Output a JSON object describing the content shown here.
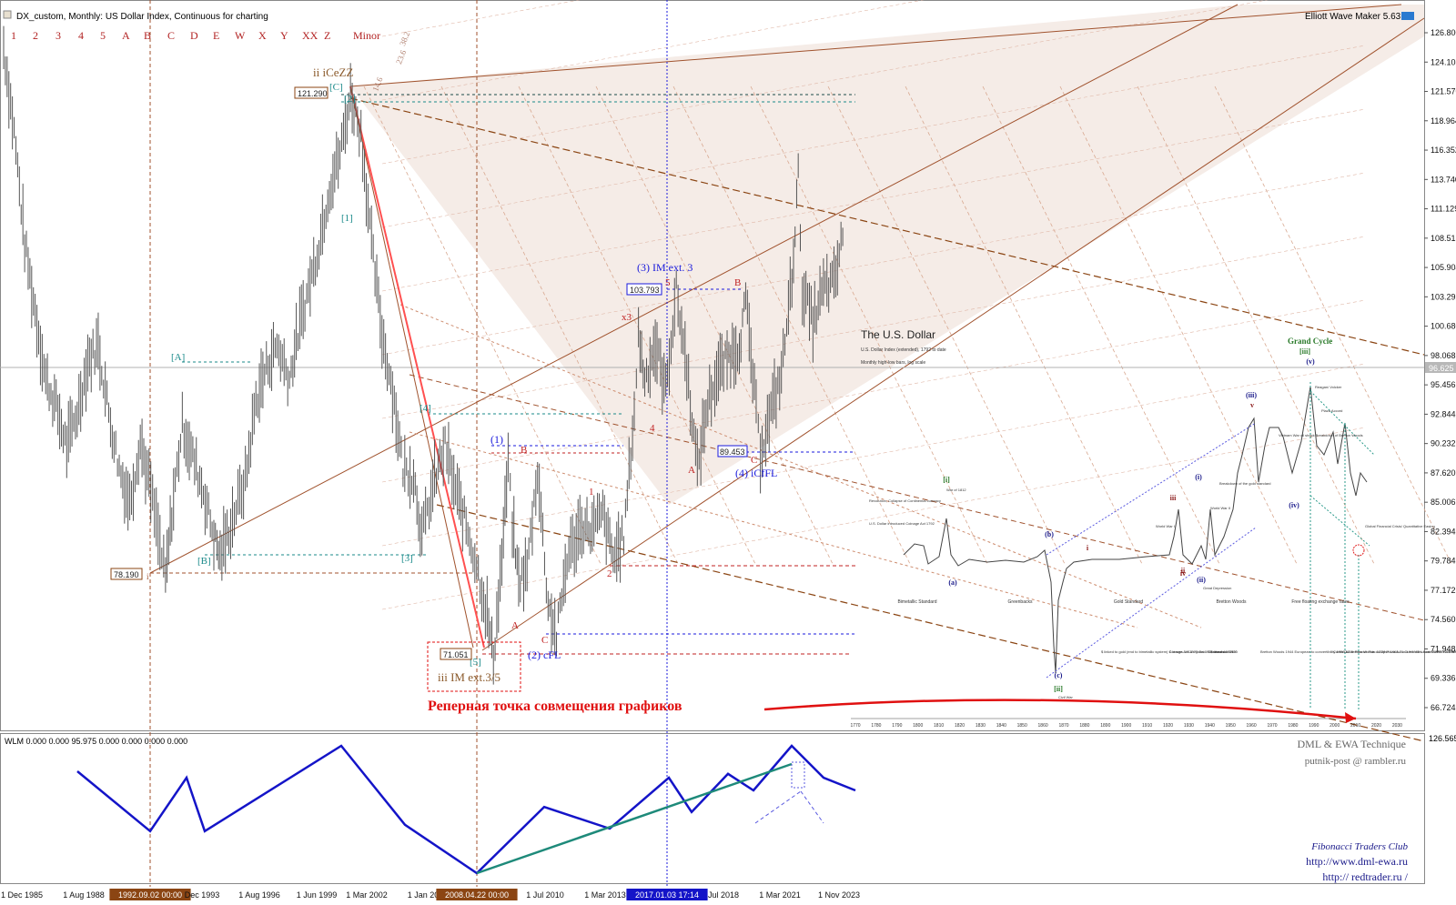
{
  "window": {
    "title": "DX_custom, Monthly:  US Dollar Index, Continuous for charting",
    "indicator_name": "Elliott Wave Maker 5.63",
    "lower_panel_title": "WLM 0.000 0.000 95.975 0.000 0.000 0.000 0.000"
  },
  "toolbar": {
    "wave_degrees": [
      "1",
      "2",
      "3",
      "4",
      "5",
      "A",
      "B",
      "C",
      "D",
      "E",
      "W",
      "X",
      "Y",
      "XX",
      "Z",
      "Minor"
    ]
  },
  "colors": {
    "price_bars": "#555555",
    "pitchfork_line": "#a0522d",
    "fib_line": "#cd8c6e",
    "blue_label": "#1a1adc",
    "red_label": "#c02020",
    "teal_label": "#1a8a8a",
    "wlm_line": "#1414c8",
    "wlm_teal": "#1e8a7a"
  },
  "chart_data": {
    "type": "line",
    "title": "DX_custom, Monthly:  US Dollar Index, Continuous for charting",
    "xlabel": "",
    "ylabel": "",
    "ylim": [
      66.724,
      126.8
    ],
    "y_ticks": [
      "126.800",
      "124.108",
      "121.570",
      "118.964",
      "116.352",
      "113.740",
      "111.129",
      "108.515",
      "105.904",
      "103.292",
      "100.680",
      "98.068",
      "95.456",
      "92.844",
      "90.232",
      "87.620",
      "85.006",
      "82.394",
      "79.784",
      "77.172",
      "74.560",
      "71.948",
      "69.336",
      "66.724"
    ],
    "current_price": "96.625",
    "x_ticks": [
      "1 Dec 1985",
      "1 Aug 1988",
      "1992.09.02 00:00",
      "Dec 1993",
      "1 Aug 1996",
      "1 Jun 1999",
      "1 Mar 2002",
      "1 Jan 20",
      "2008.04.22 00:00",
      "1 Jul 2010",
      "1 Mar 2013",
      "2017.01.03 17:14",
      "Jul 2018",
      "1 Mar 2021",
      "1 Nov 2023"
    ],
    "series": [
      {
        "x": [
          1985.0,
          1985.5,
          1986.0,
          1986.5,
          1987.0,
          1987.5,
          1988.0,
          1988.5,
          1989.0,
          1989.5,
          1990.0,
          1990.5,
          1991.0,
          1991.5,
          1992.0,
          1992.7,
          1993.0,
          1993.5,
          1994.0,
          1994.5,
          1995.0,
          1995.3,
          1995.8,
          1996.5,
          1997.0,
          1997.5,
          1998.0,
          1998.6,
          1999.0,
          1999.5,
          2000.0,
          2000.5,
          2001.0,
          2001.5,
          2002.0,
          2002.5,
          2003.0,
          2003.5,
          2004.0,
          2004.5,
          2004.9,
          2005.5,
          2006.0,
          2006.5,
          2007.0,
          2007.5,
          2008.0,
          2008.3,
          2008.7,
          2009.0,
          2009.2,
          2009.5,
          2009.9,
          2010.4,
          2010.9,
          2011.3,
          2011.8,
          2012.5,
          2013.0,
          2013.5,
          2014.0,
          2014.5,
          2015.0,
          2015.2,
          2015.5,
          2016.0,
          2016.5,
          2017.0,
          2017.5,
          2018.0,
          2018.5,
          2019.0,
          2019.5,
          2020.0,
          2020.3,
          2020.8,
          2021.0,
          2021.5,
          2022.0,
          2022.5,
          2022.8,
          2023.0,
          2023.5,
          2024.0,
          2024.5,
          2025.0
        ],
        "values": [
          125.5,
          118.0,
          108.0,
          102.0,
          96.0,
          93.5,
          90.0,
          93.0,
          97.5,
          99.0,
          93.0,
          88.0,
          85.0,
          90.5,
          86.0,
          78.2,
          84.0,
          92.0,
          89.0,
          86.0,
          82.0,
          80.2,
          83.0,
          87.0,
          94.0,
          97.0,
          99.0,
          96.0,
          100.0,
          104.0,
          108.0,
          113.0,
          116.0,
          121.3,
          118.0,
          108.0,
          100.0,
          95.0,
          88.0,
          87.5,
          82.0,
          87.0,
          90.0,
          86.0,
          83.0,
          79.5,
          75.0,
          71.1,
          80.0,
          88.5,
          83.0,
          78.0,
          79.0,
          88.0,
          76.0,
          73.0,
          80.0,
          83.0,
          82.5,
          84.0,
          80.0,
          82.0,
          93.0,
          100.0,
          96.0,
          99.0,
          95.0,
          103.8,
          97.0,
          88.0,
          94.0,
          96.5,
          98.0,
          99.0,
          103.0,
          93.0,
          89.5,
          93.0,
          96.5,
          105.0,
          114.0,
          104.0,
          101.0,
          104.0,
          104.5,
          109.5
        ]
      }
    ],
    "annotations": {
      "levels": [
        "121.290",
        "78.190",
        "71.051",
        "103.793",
        "89.453"
      ],
      "waves_blue": [
        "(1)",
        "(2) cFL",
        "(3) IM ext. 3",
        "(4) iCfFL"
      ],
      "waves_red": [
        "x3",
        "5",
        "4",
        "B",
        "A",
        "C",
        "1",
        "2",
        "A",
        "B",
        "C",
        "i"
      ],
      "waves_teal": [
        "[C]",
        "[1]",
        "[2]",
        "[3]",
        "[4]",
        "[5]",
        "[A]",
        "[B]",
        "[3]"
      ],
      "wave_ii": "ii iCeZZ",
      "wave_iii": "iii IM ext.3/5",
      "fib_labels": [
        "38.2",
        "23.6",
        "14.6"
      ],
      "russian_note": "Реперная точка совмещения графиков"
    },
    "overlay": {
      "title": "The U.S. Dollar",
      "subtitle": "U.S. Dollar Index (extended), 1792 to date",
      "scale_note": "Monthly high-low bars, log scale",
      "grand_cycle": "Grand Cycle",
      "grand_cycle_wave": "[iii]",
      "eras": [
        "Bimetallic Standard",
        "Greenbacks",
        "Gold Standard",
        "Bretton Woods",
        "Free floating exchange rates"
      ],
      "events": [
        "Revolution, Collapse of Continental currency",
        "U.S. Dollar introduced Coinage Act 1792",
        "War of 1812",
        "Civil War",
        "World War I",
        "World War II",
        "Great Depression",
        "Breakdown of the gold standard",
        "Vietnam War oil shock Breakdown of Bretton Woods",
        "Reagan/ Volcker",
        "Plaza Accord",
        "Global Financial Crisis/ Quantitative Easing"
      ],
      "waves": [
        "[i]",
        "[ii]",
        "(a)",
        "(b)",
        "(c)",
        "(i)",
        "(ii)",
        "(iii)",
        "(iv)",
        "(v)",
        "i",
        "ii",
        "iii",
        "iv",
        "v"
      ],
      "year_ticks": [
        "1770",
        "1780",
        "1790",
        "1800",
        "1810",
        "1820",
        "1830",
        "1840",
        "1850",
        "1860",
        "1870",
        "1880",
        "1890",
        "1900",
        "1910",
        "1920",
        "1930",
        "1940",
        "1950",
        "1960",
        "1970",
        "1980",
        "1990",
        "2000",
        "2010",
        "2020",
        "2030"
      ],
      "notes": [
        "$ linked to gold (end to bimetallic system) Coinage Act 1873 Gold Standard Act 1900",
        "£ leaves 1914 rejoins 1925 leaves 1931",
        "$ devalued 1933",
        "Bretton Woods 1944 European to convertibility 1958-62 Bretton Woods collapse 1968-71 Currencies float 5/1971 Gold window closed 8/1971",
        "Carter Dollar Rescue Plan 11/78 Plaza Accord 9/1985 Louvre Accord 2/1987"
      ]
    },
    "wlm": {
      "ylim_label": "126.565",
      "values": [
        1.0,
        0.33,
        0.75,
        0.33,
        1.0,
        0.0,
        0.62,
        0.55,
        1.0,
        0.35,
        0.9
      ]
    }
  },
  "watermarks": {
    "line1": "DML & EWA Technique",
    "line2": "putnik-post @ rambler.ru",
    "club_line": "Fibonacci  Traders  Club",
    "url1": "http://www.dml-ewa.ru",
    "url2": "http:// redtrader.ru /"
  }
}
